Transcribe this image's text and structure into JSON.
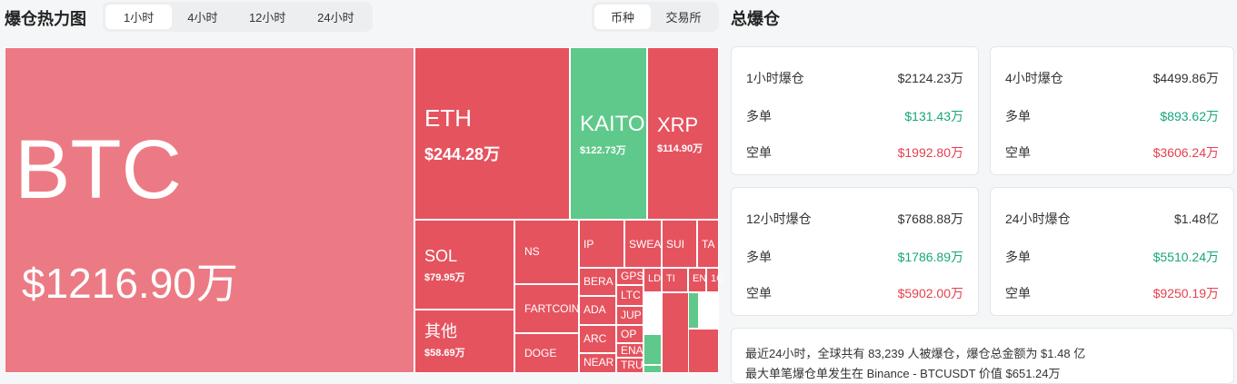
{
  "header": {
    "title": "爆仓热力图",
    "tabs": [
      "1小时",
      "4小时",
      "12小时",
      "24小时"
    ],
    "toggle": [
      "币种",
      "交易所"
    ]
  },
  "treemap": {
    "tiles": [
      {
        "label": "BTC",
        "value": "$1216.90万"
      },
      {
        "label": "ETH",
        "value": "$244.28万"
      },
      {
        "label": "KAITO",
        "value": "$122.73万"
      },
      {
        "label": "XRP",
        "value": "$114.90万"
      },
      {
        "label": "SOL",
        "value": "$79.95万"
      },
      {
        "label": "其他",
        "value": "$58.69万"
      },
      {
        "label": "NS"
      },
      {
        "label": "FARTCOIN"
      },
      {
        "label": "DOGE"
      },
      {
        "label": "IP"
      },
      {
        "label": "SWEA"
      },
      {
        "label": "SUI"
      },
      {
        "label": "TA"
      },
      {
        "label": "BERA"
      },
      {
        "label": "ADA"
      },
      {
        "label": "ARC"
      },
      {
        "label": "NEAR"
      },
      {
        "label": "GPS"
      },
      {
        "label": "LTC"
      },
      {
        "label": "JUP"
      },
      {
        "label": "OP"
      },
      {
        "label": "ENA"
      },
      {
        "label": "TRU"
      },
      {
        "label": "LD"
      },
      {
        "label": "TI"
      },
      {
        "label": "EN"
      },
      {
        "label": "1C"
      }
    ]
  },
  "summary": {
    "title": "总爆仓",
    "cards": [
      {
        "period": "1小时爆仓",
        "total": "$2124.23万",
        "long_label": "多单",
        "long": "$131.43万",
        "short_label": "空单",
        "short": "$1992.80万"
      },
      {
        "period": "4小时爆仓",
        "total": "$4499.86万",
        "long_label": "多单",
        "long": "$893.62万",
        "short_label": "空单",
        "short": "$3606.24万"
      },
      {
        "period": "12小时爆仓",
        "total": "$7688.88万",
        "long_label": "多单",
        "long": "$1786.89万",
        "short_label": "空单",
        "short": "$5902.00万"
      },
      {
        "period": "24小时爆仓",
        "total": "$1.48亿",
        "long_label": "多单",
        "long": "$5510.24万",
        "short_label": "空单",
        "short": "$9250.19万"
      }
    ],
    "notes": [
      "最近24小时，全球共有 83,239 人被爆仓，爆仓总金额为 $1.48 亿",
      "最大单笔爆仓单发生在 Binance - BTCUSDT 价值 $651.24万"
    ]
  }
}
